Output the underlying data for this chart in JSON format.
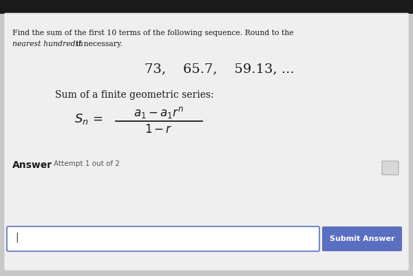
{
  "bg_top_color": "#2a2a2a",
  "bg_main_color": "#c8c8c8",
  "panel_color": "#e8e8e8",
  "title_line1": "Find the sum of the first 10 terms of the following sequence. Round to the",
  "title_line2_italic": "nearest hundredth",
  "title_line2_normal": " if necessary.",
  "sequence": "73,    65.7,    59.13, ...",
  "formula_label": "Sum of a finite geometric series:",
  "answer_label": "Answer",
  "attempt_label": "Attempt 1 out of 2",
  "input_box_color": "#ffffff",
  "input_border_color": "#5a6fc0",
  "button_color": "#5a6fc0",
  "button_text": "Submit Answer",
  "button_text_color": "#ffffff",
  "checkbox_color": "#d8d8d8",
  "checkbox_border": "#aaaaaa"
}
